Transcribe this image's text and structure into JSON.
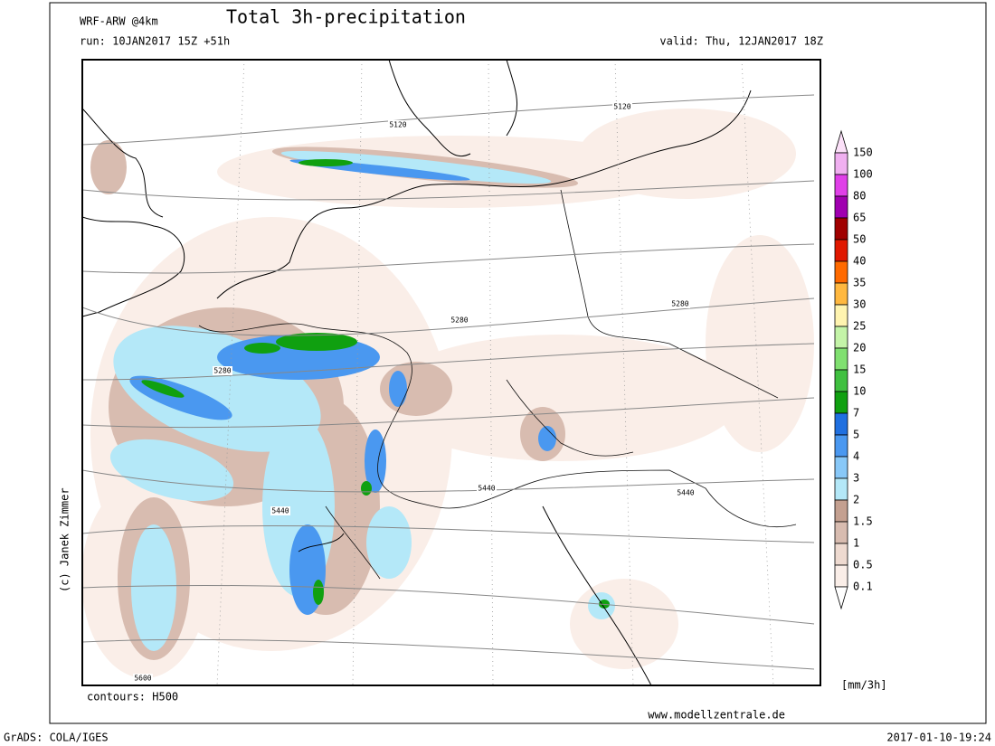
{
  "header": {
    "model": "WRF-ARW @4km",
    "title": "Total 3h-precipitation",
    "run": "run: 10JAN2017 15Z +51h",
    "valid": "valid: Thu, 12JAN2017 18Z"
  },
  "map": {
    "contour_labels": [
      "5120",
      "5120",
      "5280",
      "5280",
      "5280",
      "5440",
      "5440",
      "5440",
      "5600"
    ]
  },
  "colorbar": {
    "levels": [
      150,
      100,
      80,
      65,
      50,
      40,
      35,
      30,
      25,
      20,
      15,
      10,
      7,
      5,
      4,
      3,
      2,
      1.5,
      1,
      0.5,
      0.1
    ],
    "colors": [
      "#fbe0f8",
      "#f0b0f0",
      "#e040e8",
      "#a000b0",
      "#a00000",
      "#e01800",
      "#ff6a00",
      "#ffb840",
      "#fff4b0",
      "#c4f4a8",
      "#80e070",
      "#40c040",
      "#10a010",
      "#2070e0",
      "#4a98f0",
      "#88c8f8",
      "#b4e8f8",
      "#c4a090",
      "#d8bcb0",
      "#eedad0",
      "#faeee8",
      "#ffffff"
    ],
    "unit": "[mm/3h]"
  },
  "footer": {
    "contours": "contours: H500",
    "copyright": "(c) Janek Zimmer",
    "website": "www.modellzentrale.de",
    "software": "GrADS: COLA/IGES",
    "timestamp": "2017-01-10-19:24"
  }
}
